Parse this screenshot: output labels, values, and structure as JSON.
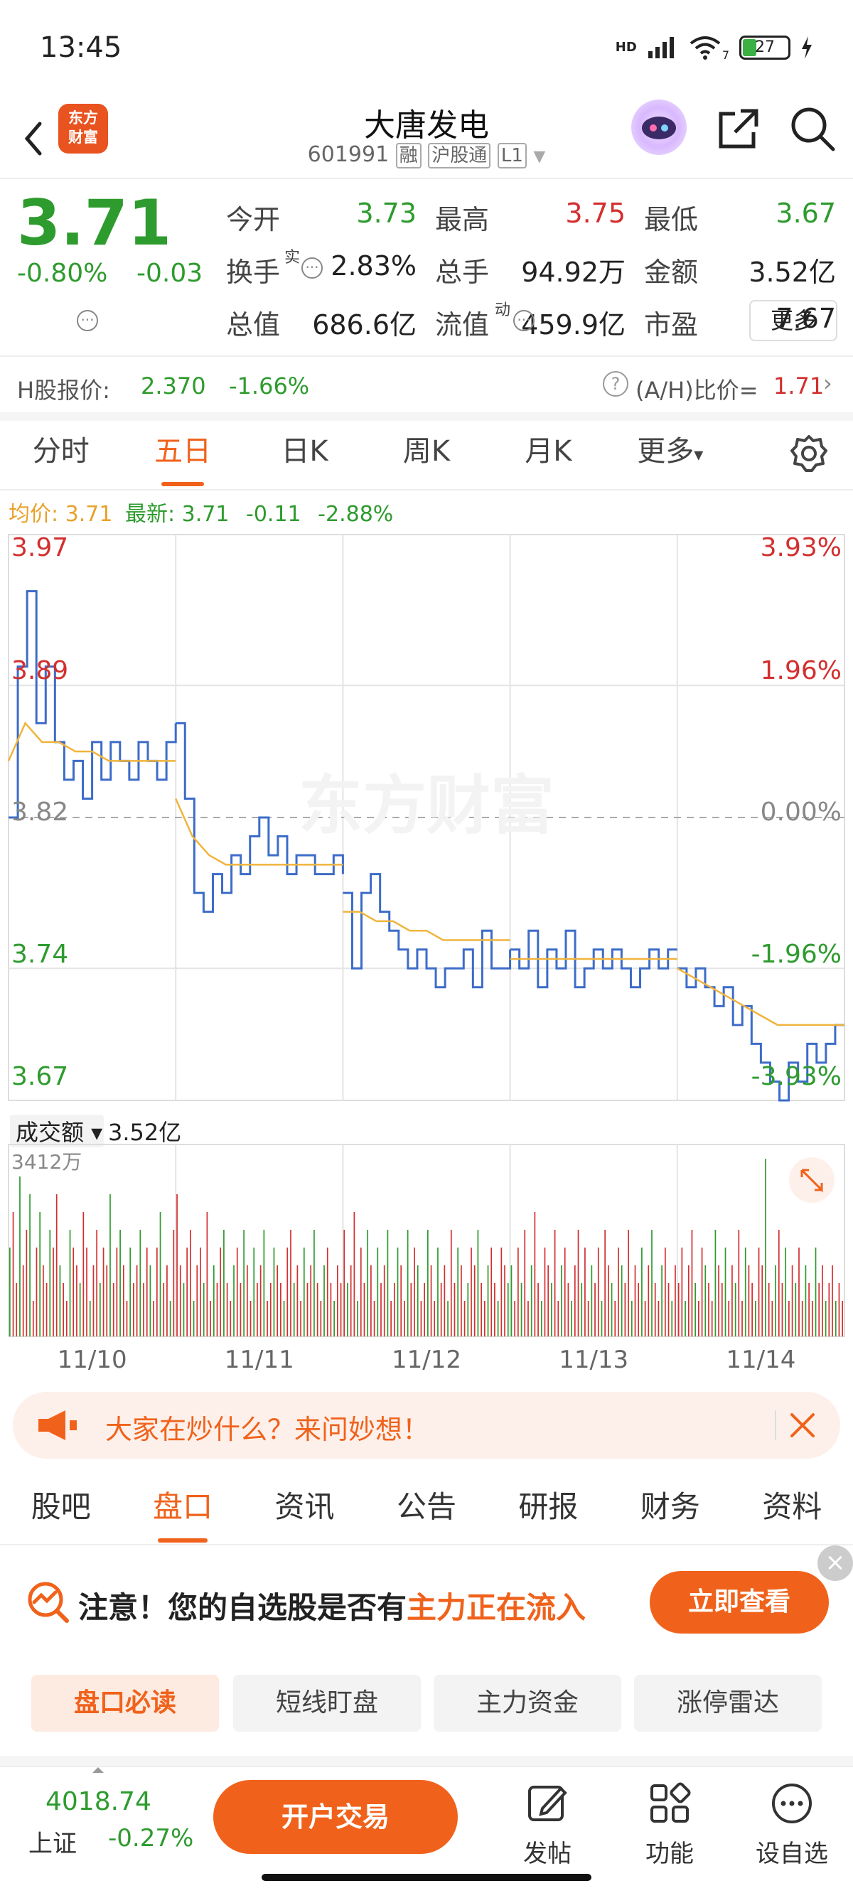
{
  "status": {
    "time": "13:45",
    "network": "HD",
    "wifi_sub": "7",
    "battery": "27"
  },
  "header": {
    "logo_line1": "东方",
    "logo_line2": "财富",
    "name": "大唐发电",
    "code": "601991",
    "tag1": "融",
    "tag2": "沪股通",
    "tag3": "L1"
  },
  "quote": {
    "price": "3.71",
    "change_pct": "-0.80%",
    "change_abs": "-0.03",
    "stats": [
      {
        "label": "今开",
        "value": "3.73",
        "color": "green"
      },
      {
        "label": "最高",
        "value": "3.75",
        "color": "red"
      },
      {
        "label": "最低",
        "value": "3.67",
        "color": "green"
      },
      {
        "label": "换手",
        "value": "2.83%",
        "color": "black"
      },
      {
        "label": "总手",
        "value": "94.92万",
        "color": "black"
      },
      {
        "label": "金额",
        "value": "3.52亿",
        "color": "black"
      },
      {
        "label": "总值",
        "value": "686.6亿",
        "color": "black"
      },
      {
        "label": "流值",
        "value": "459.9亿",
        "color": "black"
      },
      {
        "label": "市盈",
        "value": "7.67",
        "color": "black"
      }
    ],
    "turnover_sup": "实",
    "pe_sup": "动",
    "more": "更多"
  },
  "hshare": {
    "label": "H股报价:",
    "price": "2.370",
    "change": "-1.66%",
    "ah_label": "(A/H)比价=",
    "ah_value": "1.71"
  },
  "chart_tabs": [
    {
      "label": "分时",
      "active": false
    },
    {
      "label": "五日",
      "active": true
    },
    {
      "label": "日K",
      "active": false
    },
    {
      "label": "周K",
      "active": false
    },
    {
      "label": "月K",
      "active": false
    },
    {
      "label": "更多",
      "active": false
    }
  ],
  "avg_row": {
    "avg_label": "均价:",
    "avg_value": "3.71",
    "latest_label": "最新:",
    "latest_value": "3.71",
    "chg": "-0.11",
    "pct": "-2.88%"
  },
  "chart_data": {
    "type": "line",
    "title": "五日",
    "watermark": "东方财富",
    "y_labels_left": [
      "3.97",
      "3.89",
      "3.82",
      "3.74",
      "3.67"
    ],
    "y_labels_right": [
      "3.93%",
      "1.96%",
      "0.00%",
      "-1.96%",
      "-3.93%"
    ],
    "ylim": [
      3.67,
      3.97
    ],
    "prev_close": 3.82,
    "days": [
      "11/10",
      "11/11",
      "11/12",
      "11/13",
      "11/14"
    ],
    "price_series": [
      [
        3.82,
        3.9,
        3.94,
        3.87,
        3.9,
        3.86,
        3.84,
        3.85,
        3.83,
        3.86,
        3.84,
        3.86,
        3.85,
        3.84,
        3.86,
        3.85,
        3.84,
        3.86,
        3.87
      ],
      [
        3.87,
        3.83,
        3.78,
        3.77,
        3.79,
        3.78,
        3.8,
        3.79,
        3.81,
        3.82,
        3.8,
        3.81,
        3.79,
        3.8,
        3.8,
        3.79,
        3.79,
        3.8,
        3.79
      ],
      [
        3.78,
        3.74,
        3.78,
        3.79,
        3.77,
        3.76,
        3.75,
        3.74,
        3.75,
        3.74,
        3.73,
        3.74,
        3.74,
        3.75,
        3.73,
        3.76,
        3.74,
        3.74,
        3.75
      ],
      [
        3.75,
        3.74,
        3.76,
        3.73,
        3.75,
        3.74,
        3.76,
        3.73,
        3.74,
        3.75,
        3.74,
        3.75,
        3.74,
        3.73,
        3.74,
        3.75,
        3.74,
        3.75,
        3.75
      ],
      [
        3.74,
        3.73,
        3.74,
        3.73,
        3.72,
        3.73,
        3.71,
        3.72,
        3.7,
        3.69,
        3.68,
        3.67,
        3.69,
        3.68,
        3.7,
        3.69,
        3.7,
        3.71,
        3.71
      ]
    ],
    "avg_series": [
      [
        3.85,
        3.87,
        3.86,
        3.86,
        3.855,
        3.855,
        3.85,
        3.85,
        3.85,
        3.85,
        3.85
      ],
      [
        3.83,
        3.81,
        3.8,
        3.795,
        3.795,
        3.795,
        3.795,
        3.795,
        3.795,
        3.795,
        3.795
      ],
      [
        3.77,
        3.77,
        3.765,
        3.765,
        3.76,
        3.76,
        3.755,
        3.755,
        3.755,
        3.755,
        3.755
      ],
      [
        3.745,
        3.745,
        3.745,
        3.745,
        3.745,
        3.745,
        3.745,
        3.745,
        3.745,
        3.745,
        3.745
      ],
      [
        3.74,
        3.735,
        3.73,
        3.725,
        3.72,
        3.715,
        3.71,
        3.71,
        3.71,
        3.71,
        3.71
      ]
    ],
    "volume_label": "成交额",
    "volume_total": "3.52亿",
    "volume_max_label": "3412万",
    "volume_bars": [
      [
        5,
        7,
        3,
        9,
        4,
        6,
        8,
        2,
        5,
        7,
        4,
        3,
        6,
        5,
        8,
        4,
        3,
        2,
        6,
        5,
        4,
        3,
        7,
        5,
        2,
        4,
        6,
        3,
        5,
        4,
        8,
        3,
        5,
        6,
        4,
        2,
        5,
        3,
        4,
        6,
        3,
        5,
        4,
        2,
        5,
        7,
        3,
        4,
        2,
        6
      ],
      [
        8,
        4,
        3,
        5,
        6,
        2,
        4,
        5,
        3,
        7,
        2,
        4,
        3,
        5,
        6,
        3,
        2,
        4,
        5,
        3,
        6,
        4,
        2,
        5,
        3,
        4,
        6,
        2,
        3,
        5,
        4,
        3,
        2,
        5,
        6,
        3,
        4,
        2,
        5,
        3,
        4,
        6,
        3,
        2,
        4,
        5,
        3,
        2,
        4,
        3
      ],
      [
        6,
        3,
        4,
        7,
        2,
        5,
        3,
        6,
        4,
        2,
        5,
        3,
        4,
        6,
        2,
        3,
        5,
        4,
        2,
        6,
        3,
        5,
        4,
        2,
        3,
        6,
        4,
        2,
        5,
        3,
        4,
        2,
        6,
        3,
        5,
        4,
        2,
        3,
        5,
        4,
        6,
        3,
        2,
        4,
        5,
        3,
        2,
        5,
        4,
        3
      ],
      [
        4,
        2,
        5,
        3,
        6,
        2,
        4,
        7,
        3,
        2,
        5,
        4,
        3,
        6,
        2,
        4,
        5,
        3,
        2,
        4,
        6,
        3,
        5,
        2,
        4,
        3,
        5,
        2,
        6,
        4,
        3,
        2,
        5,
        4,
        3,
        6,
        2,
        4,
        3,
        5,
        2,
        4,
        6,
        3,
        2,
        4,
        5,
        3,
        2,
        4
      ],
      [
        3,
        5,
        2,
        4,
        6,
        3,
        2,
        5,
        4,
        3,
        2,
        6,
        4,
        3,
        5,
        2,
        4,
        3,
        6,
        2,
        5,
        4,
        3,
        2,
        5,
        4,
        10,
        3,
        2,
        4,
        6,
        3,
        5,
        2,
        4,
        3,
        5,
        2,
        4,
        3,
        2,
        5,
        3,
        4,
        2,
        3,
        4,
        2,
        3,
        2
      ]
    ]
  },
  "ask_banner": {
    "text": "大家在炒什么？来问妙想！"
  },
  "section_tabs": [
    {
      "label": "股吧",
      "active": false
    },
    {
      "label": "盘口",
      "active": true
    },
    {
      "label": "资讯",
      "active": false
    },
    {
      "label": "公告",
      "active": false
    },
    {
      "label": "研报",
      "active": false
    },
    {
      "label": "财务",
      "active": false
    },
    {
      "label": "资料",
      "active": false
    }
  ],
  "notice": {
    "prefix": "注意！您的自选股是否有",
    "highlight": "主力正在流入",
    "button": "立即查看"
  },
  "sub_buttons": [
    {
      "label": "盘口必读",
      "active": true
    },
    {
      "label": "短线盯盘",
      "active": false
    },
    {
      "label": "主力资金",
      "active": false
    },
    {
      "label": "涨停雷达",
      "active": false
    }
  ],
  "bottom": {
    "index_value": "4018.74",
    "index_name": "上证",
    "index_change": "-0.27%",
    "trade_button": "开户交易",
    "post_label": "发帖",
    "function_label": "功能",
    "watch_label": "设自选"
  },
  "colors": {
    "up": "#d32f2f",
    "down": "#2e9b2e",
    "accent": "#f0621b",
    "price_line": "#3c6cc8",
    "avg_line": "#f0b43c"
  }
}
